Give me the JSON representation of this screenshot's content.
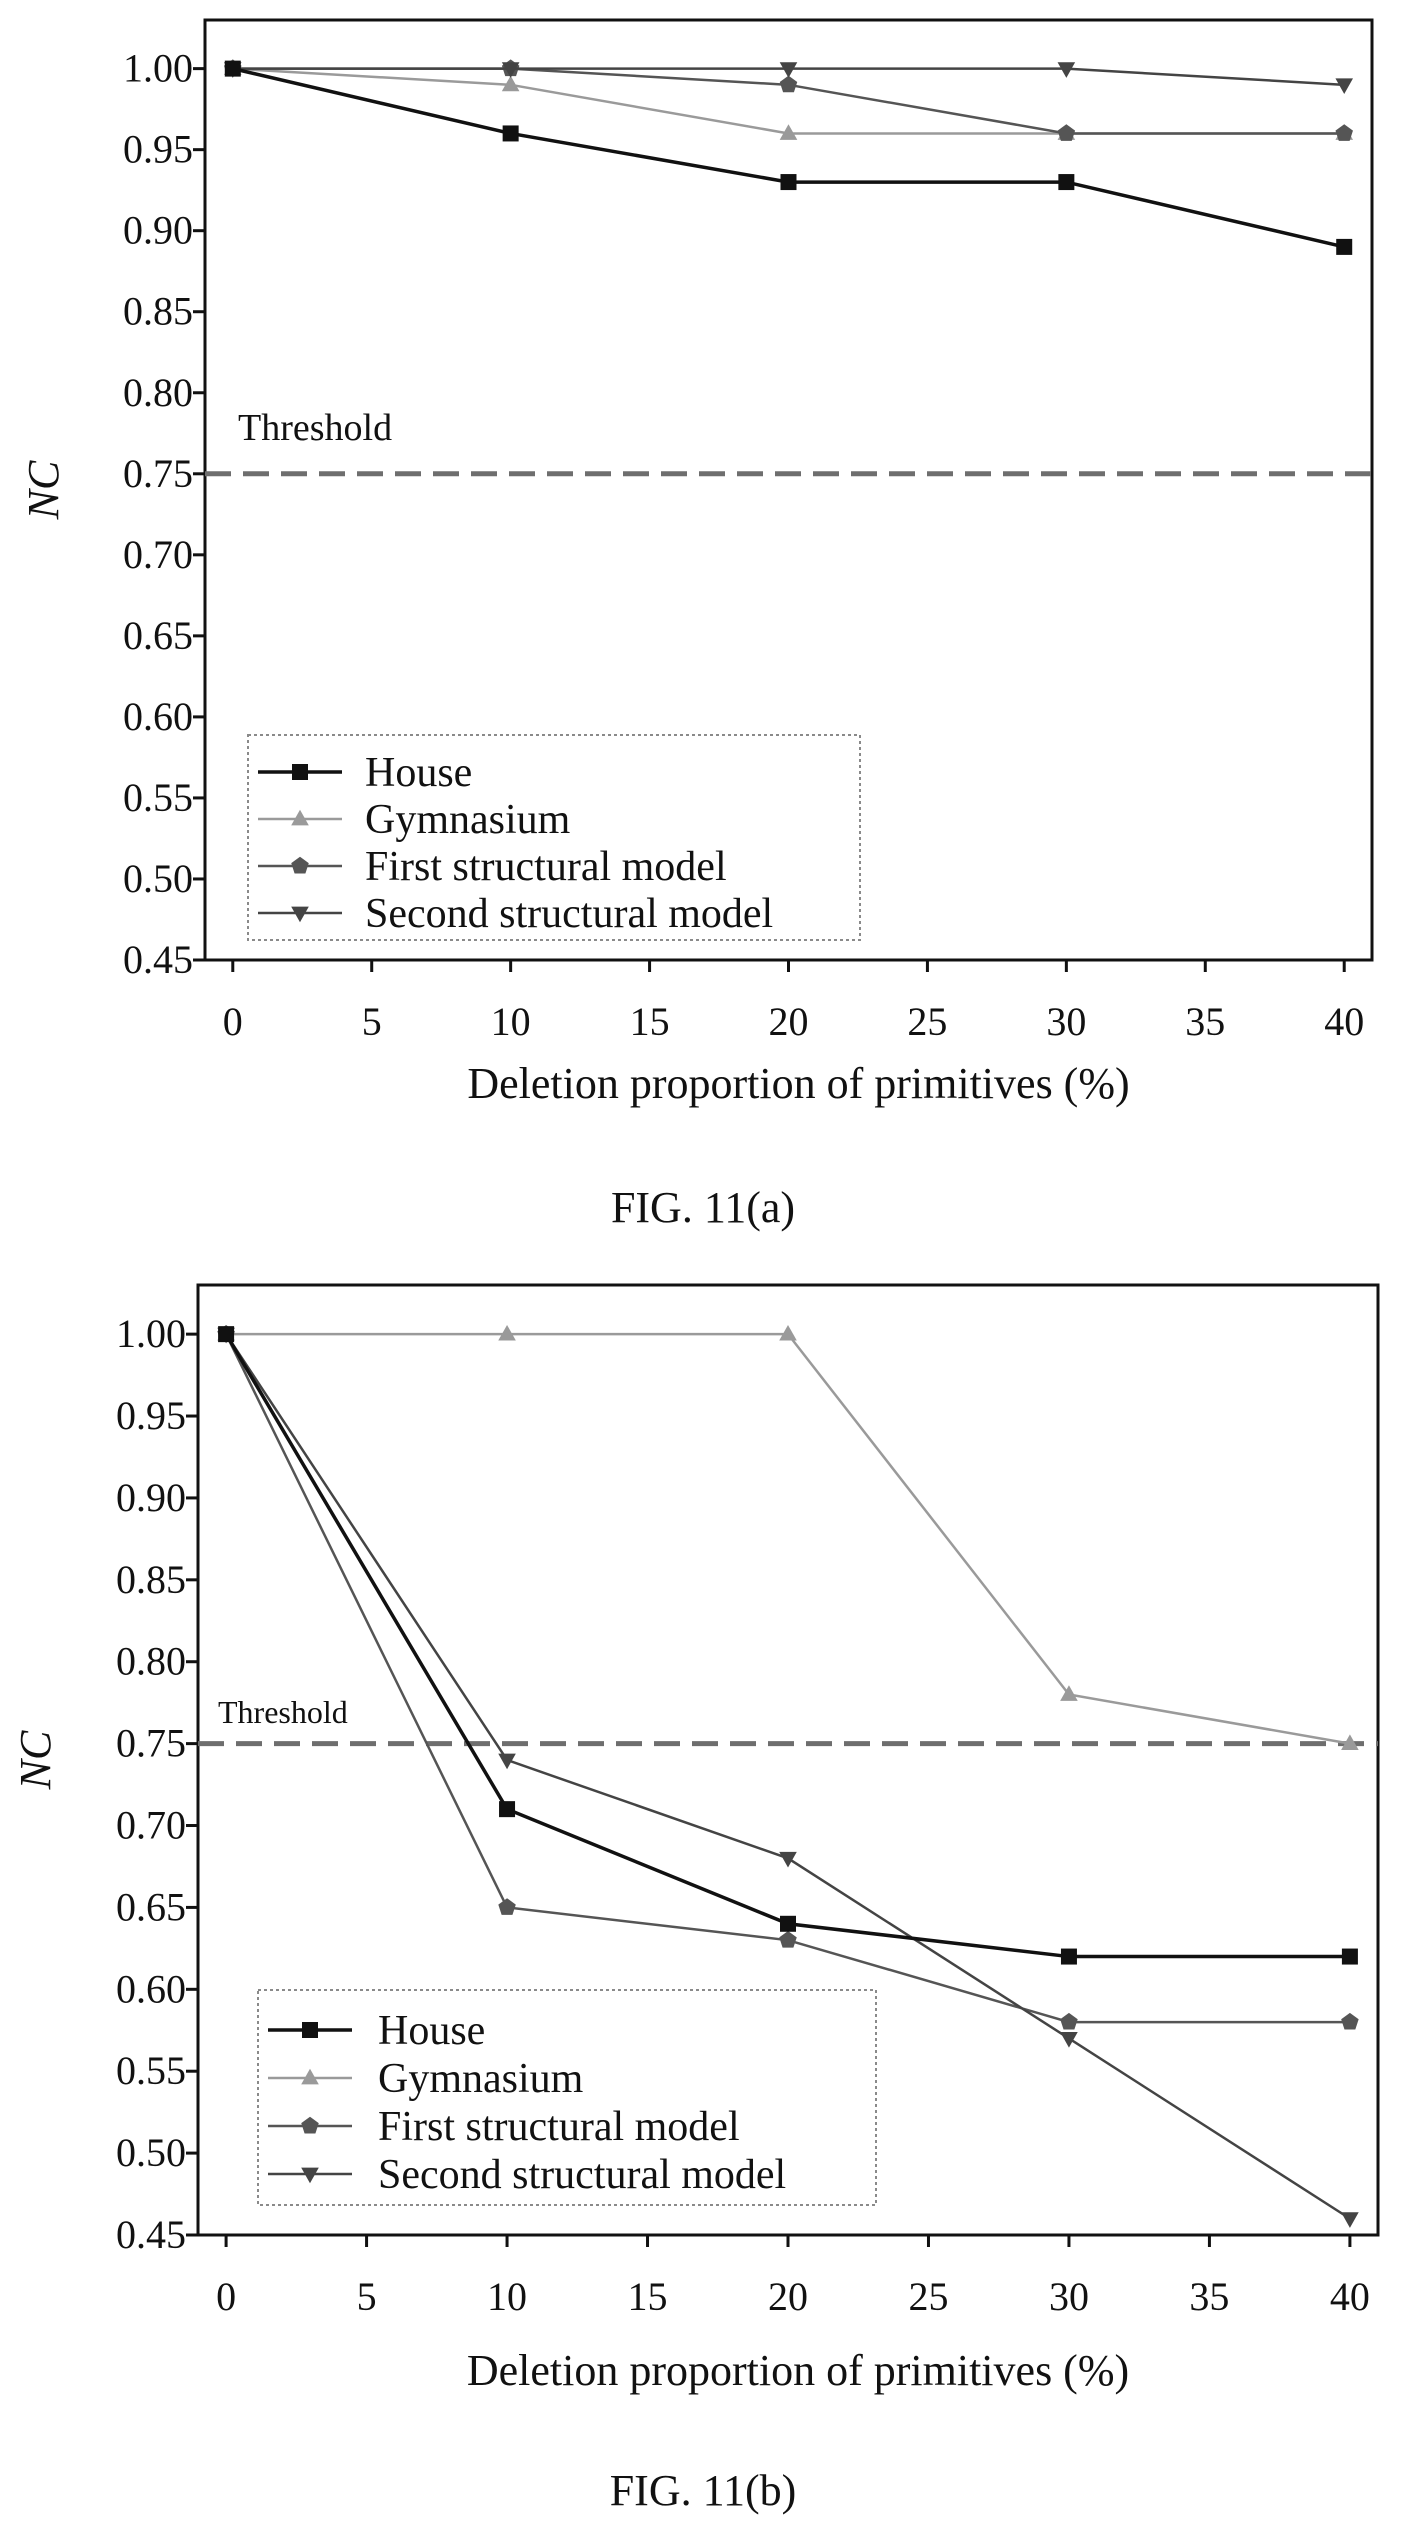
{
  "chart_data": [
    {
      "type": "line",
      "caption": "FIG. 11(a)",
      "x": [
        0,
        10,
        20,
        30,
        40
      ],
      "xticks": [
        0,
        5,
        10,
        15,
        20,
        25,
        30,
        35,
        40
      ],
      "yticks": [
        "0.45",
        "0.50",
        "0.55",
        "0.60",
        "0.65",
        "0.70",
        "0.75",
        "0.80",
        "0.85",
        "0.90",
        "0.95",
        "1.00"
      ],
      "xlim": [
        -1,
        41
      ],
      "ylim": [
        0.45,
        1.03
      ],
      "xlabel": "Deletion proportion of primitives (%)",
      "ylabel": "NC",
      "threshold": {
        "value": 0.75,
        "label": "Threshold"
      },
      "legend_position": "bottom-left",
      "series": [
        {
          "name": "House",
          "marker": "square",
          "color": "#111111",
          "values": [
            1.0,
            0.96,
            0.93,
            0.93,
            0.89
          ]
        },
        {
          "name": "Gymnasium",
          "marker": "triangle-up",
          "color": "#9a9a9a",
          "values": [
            1.0,
            0.99,
            0.96,
            0.96,
            0.96
          ]
        },
        {
          "name": "First structural model",
          "marker": "pentagon",
          "color": "#555555",
          "values": [
            1.0,
            1.0,
            0.99,
            0.96,
            0.96
          ]
        },
        {
          "name": "Second structural model",
          "marker": "triangle-down",
          "color": "#444444",
          "values": [
            1.0,
            1.0,
            1.0,
            1.0,
            0.99
          ]
        }
      ]
    },
    {
      "type": "line",
      "caption": "FIG. 11(b)",
      "x": [
        0,
        10,
        20,
        30,
        40
      ],
      "xticks": [
        0,
        5,
        10,
        15,
        20,
        25,
        30,
        35,
        40
      ],
      "yticks": [
        "0.45",
        "0.50",
        "0.55",
        "0.60",
        "0.65",
        "0.70",
        "0.75",
        "0.80",
        "0.85",
        "0.90",
        "0.95",
        "1.00"
      ],
      "xlim": [
        -1,
        41
      ],
      "ylim": [
        0.45,
        1.03
      ],
      "xlabel": "Deletion proportion of primitives (%)",
      "ylabel": "NC",
      "threshold": {
        "value": 0.75,
        "label": "Threshold"
      },
      "legend_position": "bottom-left",
      "series": [
        {
          "name": "House",
          "marker": "square",
          "color": "#111111",
          "values": [
            1.0,
            0.71,
            0.64,
            0.62,
            0.62
          ]
        },
        {
          "name": "Gymnasium",
          "marker": "triangle-up",
          "color": "#9a9a9a",
          "values": [
            1.0,
            1.0,
            1.0,
            0.78,
            0.75
          ]
        },
        {
          "name": "First structural model",
          "marker": "pentagon",
          "color": "#555555",
          "values": [
            1.0,
            0.65,
            0.63,
            0.58,
            0.58
          ]
        },
        {
          "name": "Second structural model",
          "marker": "triangle-down",
          "color": "#444444",
          "values": [
            1.0,
            0.74,
            0.68,
            0.57,
            0.46
          ]
        }
      ]
    }
  ]
}
